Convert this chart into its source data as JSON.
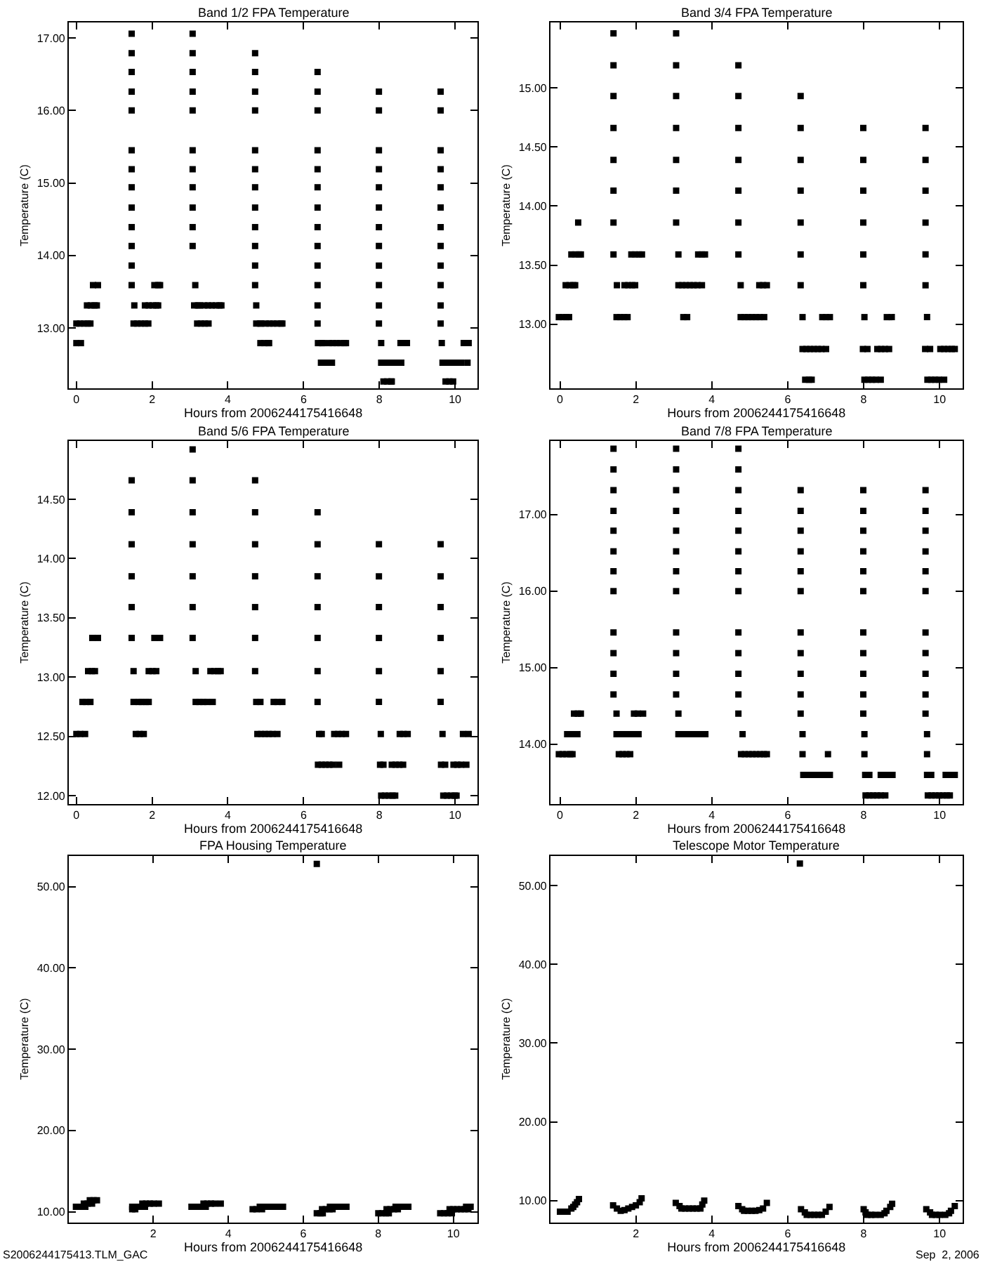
{
  "chart_data": [
    {
      "type": "scatter",
      "title": "Band 1/2 FPA Temperature",
      "xlabel": "Hours from 2006244175416648",
      "ylabel": "Temperature (C)",
      "marker": "square",
      "xlim": [
        -0.2,
        10.6
      ],
      "xticks": [
        0,
        2,
        4,
        6,
        8,
        10
      ],
      "ylim": [
        12.17,
        17.21
      ],
      "yticks": [
        {
          "value": 13,
          "label": "13.00"
        },
        {
          "value": 14,
          "label": "14.00"
        },
        {
          "value": 15,
          "label": "15.00"
        },
        {
          "value": 16,
          "label": "16.00"
        },
        {
          "value": 17,
          "label": "17.00"
        }
      ],
      "series": [
        {
          "color": "#000000",
          "x": [
            1.46,
            1.46,
            1.46,
            1.46,
            1.46,
            1.46,
            1.46,
            1.46,
            1.46,
            1.46,
            1.46,
            1.46,
            1.46,
            1.53,
            3.07,
            3.07,
            3.07,
            3.07,
            3.07,
            3.07,
            3.07,
            3.07,
            3.07,
            3.07,
            3.07,
            3.14,
            4.72,
            4.72,
            4.72,
            4.72,
            4.72,
            4.72,
            4.72,
            4.72,
            4.72,
            4.72,
            4.72,
            4.72,
            4.75,
            6.37,
            6.37,
            6.37,
            6.37,
            6.37,
            6.37,
            6.37,
            6.37,
            6.37,
            6.37,
            6.37,
            6.37,
            6.37,
            7.99,
            7.99,
            7.99,
            7.99,
            7.99,
            7.99,
            7.99,
            7.99,
            7.99,
            7.99,
            7.99,
            7.99,
            8.05,
            9.62,
            9.62,
            9.62,
            9.62,
            9.62,
            9.62,
            9.62,
            9.62,
            9.62,
            9.62,
            9.62,
            9.62,
            9.65,
            0.0,
            0.12,
            0.0,
            0.1,
            0.2,
            0.3,
            0.37,
            0.28,
            0.38,
            0.48,
            0.54,
            0.44,
            0.57,
            1.51,
            1.61,
            1.71,
            1.81,
            1.9,
            1.81,
            1.91,
            2.01,
            2.11,
            2.16,
            2.06,
            2.16,
            2.21,
            3.11,
            3.21,
            3.26,
            3.19,
            3.29,
            3.39,
            3.49,
            3.38,
            3.48,
            3.58,
            3.68,
            3.78,
            3.83,
            4.75,
            4.85,
            4.88,
            4.86,
            4.96,
            5.06,
            5.09,
            5.0,
            5.1,
            5.2,
            5.3,
            5.4,
            5.44,
            6.38,
            6.48,
            6.51,
            6.46,
            6.56,
            6.66,
            6.75,
            6.67,
            6.77,
            6.87,
            6.97,
            7.07,
            7.12,
            8.05,
            8.15,
            8.11,
            8.21,
            8.31,
            8.33,
            8.25,
            8.35,
            8.45,
            8.58,
            8.56,
            8.66,
            8.73,
            9.75,
            9.85,
            9.95,
            9.67,
            9.77,
            9.87,
            9.97,
            10.07,
            10.17,
            10.33,
            10.23,
            10.36
          ],
          "values": [
            17.06,
            16.79,
            16.53,
            16.26,
            16.0,
            15.45,
            15.19,
            14.94,
            14.66,
            14.39,
            14.13,
            13.86,
            13.59,
            13.31,
            17.06,
            16.79,
            16.53,
            16.26,
            16.0,
            15.45,
            15.19,
            14.94,
            14.66,
            14.39,
            14.13,
            13.59,
            16.79,
            16.53,
            16.26,
            16.0,
            15.45,
            15.19,
            14.94,
            14.66,
            14.39,
            14.13,
            13.86,
            13.59,
            13.31,
            16.53,
            16.26,
            16.0,
            15.45,
            15.19,
            14.94,
            14.66,
            14.39,
            14.13,
            13.86,
            13.59,
            13.31,
            13.06,
            16.26,
            16.0,
            15.45,
            15.19,
            14.94,
            14.66,
            14.39,
            14.13,
            13.86,
            13.59,
            13.31,
            13.06,
            12.79,
            16.26,
            16.0,
            15.45,
            15.19,
            14.94,
            14.66,
            14.39,
            14.13,
            13.86,
            13.59,
            13.31,
            13.06,
            12.79,
            12.79,
            12.79,
            13.06,
            13.06,
            13.06,
            13.06,
            13.06,
            13.31,
            13.31,
            13.31,
            13.31,
            13.59,
            13.59,
            13.06,
            13.06,
            13.06,
            13.06,
            13.06,
            13.31,
            13.31,
            13.31,
            13.31,
            13.31,
            13.59,
            13.59,
            13.59,
            13.31,
            13.31,
            13.31,
            13.06,
            13.06,
            13.06,
            13.06,
            13.31,
            13.31,
            13.31,
            13.31,
            13.31,
            13.31,
            13.06,
            13.06,
            13.06,
            12.79,
            12.79,
            12.79,
            12.79,
            13.06,
            13.06,
            13.06,
            13.06,
            13.06,
            13.06,
            12.79,
            12.79,
            12.79,
            12.52,
            12.52,
            12.52,
            12.52,
            12.79,
            12.79,
            12.79,
            12.79,
            12.79,
            12.79,
            12.52,
            12.52,
            12.26,
            12.26,
            12.26,
            12.26,
            12.52,
            12.52,
            12.52,
            12.52,
            12.79,
            12.79,
            12.79,
            12.26,
            12.26,
            12.26,
            12.52,
            12.52,
            12.52,
            12.52,
            12.52,
            12.52,
            12.52,
            12.79,
            12.79
          ]
        }
      ]
    },
    {
      "type": "scatter",
      "title": "Band 3/4 FPA Temperature",
      "xlabel": "Hours from 2006244175416648",
      "ylabel": "Temperature (C)",
      "marker": "square",
      "xlim": [
        -0.25,
        10.6
      ],
      "xticks": [
        0,
        2,
        4,
        6,
        8,
        10
      ],
      "ylim": [
        12.46,
        15.55
      ],
      "yticks": [
        {
          "value": 13,
          "label": "13.00"
        },
        {
          "value": 13.5,
          "label": "13.50"
        },
        {
          "value": 14,
          "label": "14.00"
        },
        {
          "value": 14.5,
          "label": "14.50"
        },
        {
          "value": 15,
          "label": "15.00"
        }
      ],
      "series": [
        {
          "color": "#000000",
          "x": [
            0.48,
            1.41,
            1.41,
            1.41,
            1.41,
            1.41,
            1.41,
            1.41,
            1.41,
            1.5,
            3.06,
            3.06,
            3.06,
            3.06,
            3.06,
            3.06,
            3.06,
            3.12,
            4.7,
            4.7,
            4.7,
            4.7,
            4.7,
            4.7,
            4.7,
            4.76,
            6.34,
            6.34,
            6.34,
            6.34,
            6.34,
            6.34,
            6.34,
            6.39,
            7.99,
            7.99,
            7.99,
            7.99,
            7.99,
            7.99,
            8.02,
            9.63,
            9.63,
            9.63,
            9.63,
            9.63,
            9.63,
            9.67,
            -0.03,
            0.07,
            0.17,
            0.24,
            0.15,
            0.25,
            0.35,
            0.4,
            0.3,
            0.4,
            0.5,
            0.55,
            1.49,
            1.59,
            1.69,
            1.78,
            1.7,
            1.8,
            1.9,
            1.98,
            1.88,
            1.98,
            2.08,
            2.16,
            3.12,
            3.22,
            3.32,
            3.42,
            3.52,
            3.62,
            3.74,
            3.25,
            3.35,
            3.64,
            3.74,
            3.82,
            4.76,
            4.86,
            4.96,
            5.06,
            5.16,
            5.26,
            5.38,
            5.25,
            5.35,
            5.45,
            6.39,
            6.49,
            6.59,
            6.69,
            6.79,
            6.89,
            7.01,
            6.46,
            6.56,
            6.63,
            6.91,
            7.01,
            7.11,
            7.98,
            8.1,
            8.02,
            8.12,
            8.22,
            8.32,
            8.45,
            8.36,
            8.46,
            8.56,
            8.67,
            8.61,
            8.74,
            9.62,
            9.75,
            9.68,
            9.78,
            9.88,
            9.98,
            10.12,
            10.02,
            10.12,
            10.22,
            10.32,
            10.4
          ],
          "values": [
            13.86,
            15.46,
            15.19,
            14.93,
            14.66,
            14.39,
            14.13,
            13.86,
            13.59,
            13.33,
            15.46,
            15.19,
            14.93,
            14.66,
            14.39,
            14.13,
            13.86,
            13.59,
            15.19,
            14.93,
            14.66,
            14.39,
            14.13,
            13.86,
            13.59,
            13.33,
            14.93,
            14.66,
            14.39,
            14.13,
            13.86,
            13.59,
            13.33,
            13.06,
            14.66,
            14.39,
            14.13,
            13.86,
            13.59,
            13.33,
            13.06,
            14.66,
            14.39,
            14.13,
            13.86,
            13.59,
            13.33,
            13.06,
            13.06,
            13.06,
            13.06,
            13.06,
            13.33,
            13.33,
            13.33,
            13.33,
            13.59,
            13.59,
            13.59,
            13.59,
            13.06,
            13.06,
            13.06,
            13.06,
            13.33,
            13.33,
            13.33,
            13.33,
            13.59,
            13.59,
            13.59,
            13.59,
            13.33,
            13.33,
            13.33,
            13.33,
            13.33,
            13.33,
            13.33,
            13.06,
            13.06,
            13.59,
            13.59,
            13.59,
            13.06,
            13.06,
            13.06,
            13.06,
            13.06,
            13.06,
            13.06,
            13.33,
            13.33,
            13.33,
            12.79,
            12.79,
            12.79,
            12.79,
            12.79,
            12.79,
            12.79,
            12.53,
            12.53,
            12.53,
            13.06,
            13.06,
            13.06,
            12.79,
            12.79,
            12.53,
            12.53,
            12.53,
            12.53,
            12.53,
            12.79,
            12.79,
            12.79,
            12.79,
            13.06,
            13.06,
            12.79,
            12.79,
            12.53,
            12.53,
            12.53,
            12.53,
            12.53,
            12.79,
            12.79,
            12.79,
            12.79,
            12.79
          ]
        }
      ]
    },
    {
      "type": "scatter",
      "title": "Band 5/6 FPA Temperature",
      "xlabel": "Hours from 2006244175416648",
      "ylabel": "Temperature (C)",
      "marker": "square",
      "xlim": [
        -0.2,
        10.6
      ],
      "xticks": [
        0,
        2,
        4,
        6,
        8,
        10
      ],
      "ylim": [
        11.93,
        14.99
      ],
      "yticks": [
        {
          "value": 12,
          "label": "12.00"
        },
        {
          "value": 12.5,
          "label": "12.50"
        },
        {
          "value": 13,
          "label": "13.00"
        },
        {
          "value": 13.5,
          "label": "13.50"
        },
        {
          "value": 14,
          "label": "14.00"
        },
        {
          "value": 14.5,
          "label": "14.50"
        }
      ],
      "series": [
        {
          "color": "#000000",
          "x": [
            1.46,
            1.46,
            1.46,
            1.46,
            1.46,
            1.46,
            1.51,
            3.07,
            3.07,
            3.07,
            3.07,
            3.07,
            3.07,
            3.07,
            3.15,
            4.72,
            4.72,
            4.72,
            4.72,
            4.72,
            4.72,
            4.72,
            6.37,
            6.37,
            6.37,
            6.37,
            6.37,
            6.37,
            6.37,
            7.99,
            7.99,
            7.99,
            7.99,
            7.99,
            7.99,
            8.04,
            9.62,
            9.62,
            9.62,
            9.62,
            9.62,
            9.62,
            9.67,
            0.0,
            0.1,
            0.23,
            0.16,
            0.26,
            0.37,
            0.31,
            0.41,
            0.49,
            0.42,
            0.57,
            1.51,
            1.65,
            1.57,
            1.67,
            1.78,
            1.73,
            1.83,
            1.91,
            1.91,
            2.01,
            2.11,
            2.06,
            2.21,
            3.15,
            3.25,
            3.35,
            3.45,
            3.6,
            3.54,
            3.64,
            3.74,
            3.81,
            4.75,
            4.86,
            4.78,
            4.88,
            4.98,
            5.08,
            5.18,
            5.31,
            5.21,
            5.31,
            5.44,
            6.41,
            6.48,
            6.38,
            6.48,
            6.58,
            6.68,
            6.78,
            6.94,
            6.81,
            6.91,
            7.01,
            7.12,
            8.02,
            8.11,
            8.05,
            8.15,
            8.25,
            8.35,
            8.42,
            8.33,
            8.43,
            8.53,
            8.63,
            8.54,
            8.64,
            8.75,
            9.63,
            9.74,
            9.69,
            9.79,
            9.89,
            9.99,
            10.04,
            9.96,
            10.06,
            10.16,
            10.3,
            10.21,
            10.36
          ],
          "values": [
            14.66,
            14.39,
            14.12,
            13.85,
            13.59,
            13.33,
            13.05,
            14.92,
            14.66,
            14.39,
            14.12,
            13.85,
            13.59,
            13.33,
            13.05,
            14.66,
            14.39,
            14.12,
            13.85,
            13.59,
            13.33,
            13.05,
            14.39,
            14.12,
            13.85,
            13.59,
            13.33,
            13.05,
            12.79,
            14.12,
            13.85,
            13.59,
            13.33,
            13.05,
            12.79,
            12.52,
            14.12,
            13.85,
            13.59,
            13.33,
            13.05,
            12.79,
            12.52,
            12.52,
            12.52,
            12.52,
            12.79,
            12.79,
            12.79,
            13.05,
            13.05,
            13.05,
            13.33,
            13.33,
            12.79,
            12.79,
            12.52,
            12.52,
            12.52,
            12.79,
            12.79,
            12.79,
            13.05,
            13.05,
            13.05,
            13.33,
            13.33,
            12.79,
            12.79,
            12.79,
            12.79,
            12.79,
            13.05,
            13.05,
            13.05,
            13.05,
            12.79,
            12.79,
            12.52,
            12.52,
            12.52,
            12.52,
            12.52,
            12.52,
            12.79,
            12.79,
            12.79,
            12.52,
            12.52,
            12.26,
            12.26,
            12.26,
            12.26,
            12.26,
            12.26,
            12.52,
            12.52,
            12.52,
            12.52,
            12.26,
            12.26,
            12.0,
            12.0,
            12.0,
            12.0,
            12.0,
            12.26,
            12.26,
            12.26,
            12.26,
            12.52,
            12.52,
            12.52,
            12.26,
            12.26,
            12.0,
            12.0,
            12.0,
            12.0,
            12.0,
            12.26,
            12.26,
            12.26,
            12.26,
            12.52,
            12.52
          ]
        }
      ]
    },
    {
      "type": "scatter",
      "title": "Band 7/8 FPA Temperature",
      "xlabel": "Hours from 2006244175416648",
      "ylabel": "Temperature (C)",
      "marker": "square",
      "xlim": [
        -0.25,
        10.6
      ],
      "xticks": [
        0,
        2,
        4,
        6,
        8,
        10
      ],
      "ylim": [
        13.22,
        17.96
      ],
      "yticks": [
        {
          "value": 14,
          "label": "14.00"
        },
        {
          "value": 15,
          "label": "15.00"
        },
        {
          "value": 16,
          "label": "16.00"
        },
        {
          "value": 17,
          "label": "17.00"
        }
      ],
      "series": [
        {
          "color": "#000000",
          "x": [
            1.41,
            1.41,
            1.41,
            1.41,
            1.41,
            1.41,
            1.41,
            1.41,
            1.41,
            1.41,
            1.41,
            1.41,
            1.49,
            3.06,
            3.06,
            3.06,
            3.06,
            3.06,
            3.06,
            3.06,
            3.06,
            3.06,
            3.06,
            3.06,
            3.06,
            3.12,
            4.7,
            4.7,
            4.7,
            4.7,
            4.7,
            4.7,
            4.7,
            4.7,
            4.7,
            4.7,
            4.7,
            4.7,
            4.7,
            4.81,
            6.34,
            6.34,
            6.34,
            6.34,
            6.34,
            6.34,
            6.34,
            6.34,
            6.34,
            6.34,
            6.34,
            6.39,
            6.39,
            7.06,
            7.99,
            7.99,
            7.99,
            7.99,
            7.99,
            7.99,
            7.99,
            7.99,
            7.99,
            7.99,
            7.99,
            8.02,
            8.02,
            9.63,
            9.63,
            9.63,
            9.63,
            9.63,
            9.63,
            9.63,
            9.63,
            9.63,
            9.63,
            9.63,
            9.67,
            9.67,
            -0.03,
            0.07,
            0.17,
            0.27,
            0.33,
            0.19,
            0.29,
            0.39,
            0.46,
            0.37,
            0.47,
            0.55,
            1.49,
            1.61,
            1.55,
            1.65,
            1.75,
            1.85,
            1.72,
            1.82,
            1.92,
            2.07,
            1.95,
            2.05,
            2.19,
            3.12,
            3.22,
            3.32,
            3.42,
            3.52,
            3.62,
            3.72,
            3.83,
            4.77,
            4.87,
            4.97,
            5.07,
            5.17,
            5.27,
            5.37,
            5.45,
            6.41,
            6.51,
            6.61,
            6.71,
            6.81,
            6.91,
            7.01,
            7.11,
            8.04,
            8.15,
            8.05,
            8.15,
            8.25,
            8.35,
            8.45,
            8.57,
            8.45,
            8.55,
            8.65,
            8.76,
            9.67,
            9.78,
            9.69,
            9.79,
            9.89,
            9.99,
            10.09,
            10.19,
            10.27,
            10.16,
            10.26,
            10.4
          ],
          "values": [
            17.86,
            17.59,
            17.32,
            17.05,
            16.79,
            16.52,
            16.26,
            16.0,
            15.46,
            15.19,
            14.92,
            14.65,
            14.4,
            17.86,
            17.59,
            17.32,
            17.05,
            16.79,
            16.52,
            16.26,
            16.0,
            15.46,
            15.19,
            14.92,
            14.65,
            14.4,
            17.86,
            17.59,
            17.32,
            17.05,
            16.79,
            16.52,
            16.26,
            16.0,
            15.46,
            15.19,
            14.92,
            14.65,
            14.4,
            14.13,
            17.32,
            17.05,
            16.79,
            16.52,
            16.26,
            16.0,
            15.46,
            15.19,
            14.92,
            14.65,
            14.4,
            14.13,
            13.87,
            13.87,
            17.32,
            17.05,
            16.79,
            16.52,
            16.26,
            16.0,
            15.46,
            15.19,
            14.92,
            14.65,
            14.4,
            14.13,
            13.87,
            17.32,
            17.05,
            16.79,
            16.52,
            16.26,
            16.0,
            15.46,
            15.19,
            14.92,
            14.65,
            14.4,
            14.13,
            13.87,
            13.87,
            13.87,
            13.87,
            13.87,
            13.87,
            14.13,
            14.13,
            14.13,
            14.13,
            14.4,
            14.4,
            14.4,
            14.13,
            14.13,
            13.87,
            13.87,
            13.87,
            13.87,
            14.13,
            14.13,
            14.13,
            14.13,
            14.4,
            14.4,
            14.4,
            14.13,
            14.13,
            14.13,
            14.13,
            14.13,
            14.13,
            14.13,
            14.13,
            13.87,
            13.87,
            13.87,
            13.87,
            13.87,
            13.87,
            13.87,
            13.87,
            13.6,
            13.6,
            13.6,
            13.6,
            13.6,
            13.6,
            13.6,
            13.6,
            13.6,
            13.6,
            13.33,
            13.33,
            13.33,
            13.33,
            13.33,
            13.33,
            13.6,
            13.6,
            13.6,
            13.6,
            13.6,
            13.6,
            13.33,
            13.33,
            13.33,
            13.33,
            13.33,
            13.33,
            13.33,
            13.6,
            13.6,
            13.6
          ]
        }
      ]
    },
    {
      "type": "scatter",
      "title": "FPA Housing Temperature",
      "xlabel": "Hours from 2006244175416648",
      "ylabel": "Temperature (C)",
      "marker": "square",
      "annotations": [
        "S2006244175413.TLM_GAC"
      ],
      "xlim": [
        -0.25,
        10.65
      ],
      "xticks": [
        2,
        4,
        6,
        8,
        10
      ],
      "ylim": [
        8.7,
        53.8
      ],
      "yticks": [
        {
          "value": 10,
          "label": "10.00"
        },
        {
          "value": 20,
          "label": "20.00"
        },
        {
          "value": 30,
          "label": "30.00"
        },
        {
          "value": 40,
          "label": "40.00"
        },
        {
          "value": 50,
          "label": "50.00"
        }
      ],
      "series": [
        {
          "color": "#000000",
          "x": [
            6.36,
            -0.06,
            0.04,
            0.19,
            0.15,
            0.25,
            0.37,
            0.31,
            0.41,
            0.5,
            1.44,
            1.52,
            1.44,
            1.54,
            1.64,
            1.78,
            1.71,
            1.81,
            1.91,
            2.01,
            2.15,
            3.02,
            3.12,
            3.22,
            3.32,
            3.4,
            3.34,
            3.44,
            3.54,
            3.64,
            3.8,
            4.65,
            4.75,
            4.9,
            4.84,
            4.94,
            5.04,
            5.14,
            5.24,
            5.34,
            5.46,
            6.36,
            6.46,
            6.52,
            6.5,
            6.6,
            6.7,
            6.78,
            6.71,
            6.81,
            6.91,
            7.01,
            7.15,
            8.0,
            8.1,
            8.2,
            8.28,
            8.22,
            8.32,
            8.42,
            8.52,
            8.46,
            8.56,
            8.66,
            8.8,
            9.65,
            9.75,
            9.85,
            9.96,
            9.9,
            10.0,
            10.1,
            10.2,
            10.3,
            10.4,
            10.34,
            10.46
          ],
          "values": [
            52.8,
            10.6,
            10.6,
            10.6,
            11.0,
            11.0,
            11.0,
            11.4,
            11.4,
            11.4,
            10.3,
            10.3,
            10.6,
            10.6,
            10.6,
            10.6,
            11.0,
            11.0,
            11.0,
            11.0,
            11.0,
            10.6,
            10.6,
            10.6,
            10.6,
            10.6,
            11.0,
            11.0,
            11.0,
            11.0,
            11.0,
            10.3,
            10.3,
            10.3,
            10.6,
            10.6,
            10.6,
            10.6,
            10.6,
            10.6,
            10.6,
            9.8,
            9.8,
            9.8,
            10.3,
            10.3,
            10.3,
            10.3,
            10.6,
            10.6,
            10.6,
            10.6,
            10.6,
            9.8,
            9.8,
            9.8,
            9.8,
            10.3,
            10.3,
            10.3,
            10.3,
            10.6,
            10.6,
            10.6,
            10.6,
            9.8,
            9.8,
            9.8,
            9.8,
            10.3,
            10.3,
            10.3,
            10.3,
            10.3,
            10.3,
            10.6,
            10.6
          ]
        }
      ]
    },
    {
      "type": "scatter",
      "title": "Telescope Motor Temperature",
      "xlabel": "Hours from 2006244175416648",
      "ylabel": "Temperature (C)",
      "marker": "square",
      "annotations": [
        "Sep  2, 2006"
      ],
      "xlim": [
        -0.25,
        10.6
      ],
      "xticks": [
        2,
        4,
        6,
        8,
        10
      ],
      "ylim": [
        7.25,
        53.8
      ],
      "yticks": [
        {
          "value": 10,
          "label": "10.00"
        },
        {
          "value": 20,
          "label": "20.00"
        },
        {
          "value": 30,
          "label": "30.00"
        },
        {
          "value": 40,
          "label": "40.00"
        },
        {
          "value": 50,
          "label": "50.00"
        }
      ],
      "series": [
        {
          "color": "#000000",
          "x": [
            6.32,
            0.0,
            0.1,
            0.2,
            0.3,
            0.35,
            0.4,
            0.45,
            0.5,
            1.4,
            1.5,
            1.6,
            1.7,
            1.8,
            1.9,
            2.0,
            2.1,
            2.15,
            3.05,
            3.15,
            3.2,
            3.3,
            3.4,
            3.5,
            3.6,
            3.7,
            3.75,
            3.8,
            4.7,
            4.8,
            4.85,
            4.95,
            5.05,
            5.15,
            5.25,
            5.35,
            5.45,
            6.35,
            6.45,
            6.5,
            6.6,
            6.7,
            6.8,
            6.9,
            7.0,
            7.1,
            8.0,
            8.05,
            8.1,
            8.2,
            8.3,
            8.45,
            8.55,
            8.6,
            8.7,
            8.75,
            9.65,
            9.75,
            9.8,
            9.9,
            10.0,
            10.15,
            10.25,
            10.3,
            10.4
          ],
          "values": [
            52.8,
            8.6,
            8.6,
            8.6,
            9.0,
            9.2,
            9.5,
            9.8,
            10.2,
            9.4,
            9.0,
            8.7,
            8.8,
            9.0,
            9.2,
            9.4,
            9.8,
            10.3,
            9.7,
            9.3,
            9.0,
            9.0,
            9.0,
            9.0,
            9.0,
            9.0,
            9.5,
            10.0,
            9.3,
            8.9,
            8.7,
            8.7,
            8.7,
            8.7,
            8.8,
            9.0,
            9.7,
            8.9,
            8.5,
            8.2,
            8.2,
            8.2,
            8.2,
            8.2,
            8.6,
            9.2,
            8.9,
            8.5,
            8.2,
            8.2,
            8.2,
            8.2,
            8.4,
            8.7,
            9.2,
            9.6,
            8.9,
            8.5,
            8.2,
            8.2,
            8.2,
            8.2,
            8.4,
            8.7,
            9.3
          ]
        }
      ]
    }
  ]
}
